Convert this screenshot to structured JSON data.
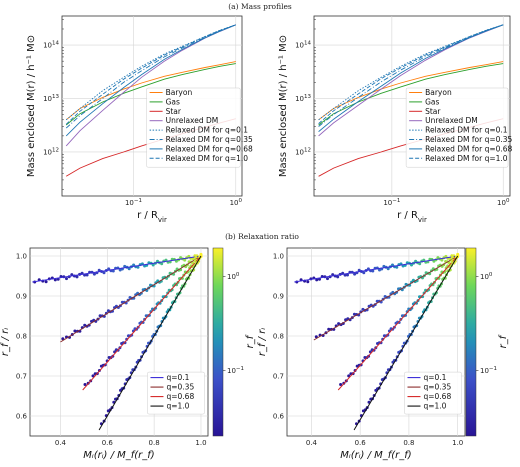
{
  "captions": {
    "top": "(a) Mass profiles",
    "bottom": "(b) Relaxation ratio"
  },
  "colors": {
    "baryon": "#ff7f0e",
    "gas": "#2ca02c",
    "star": "#d62728",
    "unrelaxed": "#9467bd",
    "relaxed": "#1f77b4",
    "q01": "#3a2bd8",
    "q035": "#8c2d2d",
    "q068": "#d62728",
    "q10": "#111111",
    "grid": "#d6d6d6"
  },
  "chart_data": [
    {
      "type": "line",
      "panel": "mass-left",
      "xlabel": "r / R_vir",
      "ylabel": "Mass enclosed M(r) / h⁻¹ M⊙",
      "xscale": "log",
      "yscale": "log",
      "xlim": [
        0.02,
        1.15
      ],
      "ylim": [
        150000000000.0,
        350000000000000.0
      ],
      "xticks": [
        "10⁻¹",
        "10⁰"
      ],
      "yticks": [
        "10¹²",
        "10¹³",
        "10¹⁴"
      ],
      "x": [
        0.022,
        0.03,
        0.05,
        0.08,
        0.12,
        0.2,
        0.3,
        0.5,
        0.7,
        1.0
      ],
      "series": [
        {
          "name": "Baryon",
          "style": "solid",
          "values": [
            4000000000000.0,
            6500000000000.0,
            10500000000000.0,
            15000000000000.0,
            19500000000000.0,
            26000000000000.0,
            31000000000000.0,
            38000000000000.0,
            43000000000000.0,
            49000000000000.0
          ]
        },
        {
          "name": "Gas",
          "style": "solid",
          "values": [
            3200000000000.0,
            5200000000000.0,
            8600000000000.0,
            12500000000000.0,
            16500000000000.0,
            23000000000000.0,
            28000000000000.0,
            35000000000000.0,
            40000000000000.0,
            45000000000000.0
          ]
        },
        {
          "name": "Star",
          "style": "solid",
          "values": [
            350000000000.0,
            500000000000.0,
            750000000000.0,
            1000000000000.0,
            1300000000000.0,
            1750000000000.0,
            2200000000000.0,
            2900000000000.0,
            3500000000000.0,
            4200000000000.0
          ]
        },
        {
          "name": "Unrelaxed DM",
          "style": "solid",
          "values": [
            1300000000000.0,
            2500000000000.0,
            6000000000000.0,
            13000000000000.0,
            25000000000000.0,
            50000000000000.0,
            80000000000000.0,
            135000000000000.0,
            180000000000000.0,
            240000000000000.0
          ]
        },
        {
          "name": "Relaxed DM for q=0.1",
          "style": "dotted",
          "values": [
            4000000000000.0,
            6500000000000.0,
            14000000000000.0,
            25000000000000.0,
            40000000000000.0,
            68000000000000.0,
            95000000000000.0,
            145000000000000.0,
            190000000000000.0,
            240000000000000.0
          ]
        },
        {
          "name": "Relaxed DM for q=0.35",
          "style": "dashdot",
          "values": [
            2800000000000.0,
            4800000000000.0,
            10000000000000.0,
            20000000000000.0,
            33000000000000.0,
            60000000000000.0,
            88000000000000.0,
            140000000000000.0,
            185000000000000.0,
            240000000000000.0
          ]
        },
        {
          "name": "Relaxed DM for q=0.68",
          "style": "solid",
          "values": [
            2000000000000.0,
            3600000000000.0,
            8000000000000.0,
            16000000000000.0,
            28000000000000.0,
            54000000000000.0,
            83000000000000.0,
            137000000000000.0,
            182000000000000.0,
            240000000000000.0
          ]
        },
        {
          "name": "Relaxed DM for q=1.0",
          "style": "dashed",
          "values": [
            3300000000000.0,
            5800000000000.0,
            12000000000000.0,
            23000000000000.0,
            37000000000000.0,
            65000000000000.0,
            92000000000000.0,
            144000000000000.0,
            188000000000000.0,
            240000000000000.0
          ]
        }
      ],
      "legend": "lower-right"
    },
    {
      "type": "line",
      "panel": "mass-right",
      "xlabel": "r / R_vir",
      "ylabel": "Mass enclosed M(r) / h⁻¹ M⊙",
      "xscale": "log",
      "yscale": "log",
      "xlim": [
        0.02,
        1.15
      ],
      "ylim": [
        150000000000.0,
        350000000000000.0
      ],
      "xticks": [
        "10⁻¹",
        "10⁰"
      ],
      "yticks": [
        "10¹²",
        "10¹³",
        "10¹⁴"
      ],
      "x": [
        0.022,
        0.03,
        0.05,
        0.08,
        0.12,
        0.2,
        0.3,
        0.5,
        0.7,
        1.0
      ],
      "series": [
        {
          "name": "Baryon",
          "style": "solid",
          "values": [
            4000000000000.0,
            6500000000000.0,
            10500000000000.0,
            15000000000000.0,
            19500000000000.0,
            26000000000000.0,
            31000000000000.0,
            38000000000000.0,
            43000000000000.0,
            49000000000000.0
          ]
        },
        {
          "name": "Gas",
          "style": "solid",
          "values": [
            3200000000000.0,
            5200000000000.0,
            8600000000000.0,
            12500000000000.0,
            16500000000000.0,
            23000000000000.0,
            28000000000000.0,
            35000000000000.0,
            40000000000000.0,
            45000000000000.0
          ]
        },
        {
          "name": "Star",
          "style": "solid",
          "values": [
            350000000000.0,
            500000000000.0,
            750000000000.0,
            1000000000000.0,
            1300000000000.0,
            1750000000000.0,
            2200000000000.0,
            2900000000000.0,
            3500000000000.0,
            4200000000000.0
          ]
        },
        {
          "name": "Unrelaxed DM",
          "style": "solid",
          "values": [
            2000000000000.0,
            3500000000000.0,
            7500000000000.0,
            15000000000000.0,
            27000000000000.0,
            52000000000000.0,
            82000000000000.0,
            136000000000000.0,
            180000000000000.0,
            240000000000000.0
          ]
        },
        {
          "name": "Relaxed DM for q=0.1",
          "style": "dotted",
          "values": [
            4000000000000.0,
            6500000000000.0,
            14000000000000.0,
            25000000000000.0,
            40000000000000.0,
            68000000000000.0,
            95000000000000.0,
            145000000000000.0,
            190000000000000.0,
            240000000000000.0
          ]
        },
        {
          "name": "Relaxed DM for q=0.35",
          "style": "dashdot",
          "values": [
            3000000000000.0,
            5000000000000.0,
            10500000000000.0,
            20500000000000.0,
            34000000000000.0,
            61000000000000.0,
            89000000000000.0,
            140000000000000.0,
            185000000000000.0,
            240000000000000.0
          ]
        },
        {
          "name": "Relaxed DM for q=0.68",
          "style": "solid",
          "values": [
            2400000000000.0,
            4100000000000.0,
            8800000000000.0,
            17000000000000.0,
            30000000000000.0,
            56000000000000.0,
            85000000000000.0,
            138000000000000.0,
            183000000000000.0,
            240000000000000.0
          ]
        },
        {
          "name": "Relaxed DM for q=1.0",
          "style": "dashed",
          "values": [
            3400000000000.0,
            5900000000000.0,
            12200000000000.0,
            23500000000000.0,
            37500000000000.0,
            65000000000000.0,
            92000000000000.0,
            144000000000000.0,
            188000000000000.0,
            240000000000000.0
          ]
        }
      ],
      "legend": "lower-right"
    },
    {
      "type": "scatter",
      "panel": "ratio-left",
      "xlabel": "Mᵢ(rᵢ) / M_f(r_f)",
      "ylabel": "r_f / rᵢ",
      "xlim": [
        0.27,
        1.03
      ],
      "ylim": [
        0.55,
        1.02
      ],
      "xticks": [
        "0.4",
        "0.6",
        "0.8",
        "1.0"
      ],
      "yticks": [
        "0.6",
        "0.7",
        "0.8",
        "0.9",
        "1.0"
      ],
      "colorbar": {
        "label": "r_f",
        "scale": "log",
        "ticks": [
          "10⁻¹",
          "10⁰"
        ],
        "range": [
          0.02,
          2.0
        ]
      },
      "series": [
        {
          "name": "q=0.1",
          "start": [
            0.29,
            0.935
          ],
          "end": [
            1.0,
            1.0
          ],
          "fit_start": [
            0.28,
            0.935
          ]
        },
        {
          "name": "q=0.35",
          "start": [
            0.41,
            0.79
          ],
          "end": [
            1.0,
            1.0
          ],
          "fit_start": [
            0.4,
            0.785
          ]
        },
        {
          "name": "q=0.68",
          "start": [
            0.505,
            0.675
          ],
          "end": [
            1.0,
            1.0
          ],
          "fit_start": [
            0.495,
            0.665
          ]
        },
        {
          "name": "q=1.0",
          "start": [
            0.575,
            0.58
          ],
          "end": [
            1.0,
            1.0
          ],
          "fit_start": [
            0.565,
            0.565
          ]
        }
      ],
      "legend": "lower-right"
    },
    {
      "type": "scatter",
      "panel": "ratio-right",
      "xlabel": "Mᵢ(rᵢ) / M_f(r_f)",
      "ylabel": "r_f / rᵢ",
      "xlim": [
        0.3,
        1.03
      ],
      "ylim": [
        0.55,
        1.02
      ],
      "xticks": [
        "0.4",
        "0.6",
        "0.8",
        "1.0"
      ],
      "yticks": [
        "0.6",
        "0.7",
        "0.8",
        "0.9",
        "1.0"
      ],
      "colorbar": {
        "label": "r_f",
        "scale": "log",
        "ticks": [
          "10⁻¹",
          "10⁰"
        ],
        "range": [
          0.02,
          2.0
        ]
      },
      "series": [
        {
          "name": "q=0.1",
          "start": [
            0.34,
            0.935
          ],
          "end": [
            1.0,
            1.0
          ],
          "fit_start": [
            0.33,
            0.935
          ]
        },
        {
          "name": "q=0.35",
          "start": [
            0.42,
            0.795
          ],
          "end": [
            1.0,
            1.0
          ],
          "fit_start": [
            0.41,
            0.79
          ]
        },
        {
          "name": "q=0.68",
          "start": [
            0.52,
            0.675
          ],
          "end": [
            1.0,
            1.0
          ],
          "fit_start": [
            0.51,
            0.665
          ]
        },
        {
          "name": "q=1.0",
          "start": [
            0.585,
            0.58
          ],
          "end": [
            1.0,
            1.0
          ],
          "fit_start": [
            0.575,
            0.565
          ]
        }
      ],
      "legend": "lower-right"
    }
  ]
}
